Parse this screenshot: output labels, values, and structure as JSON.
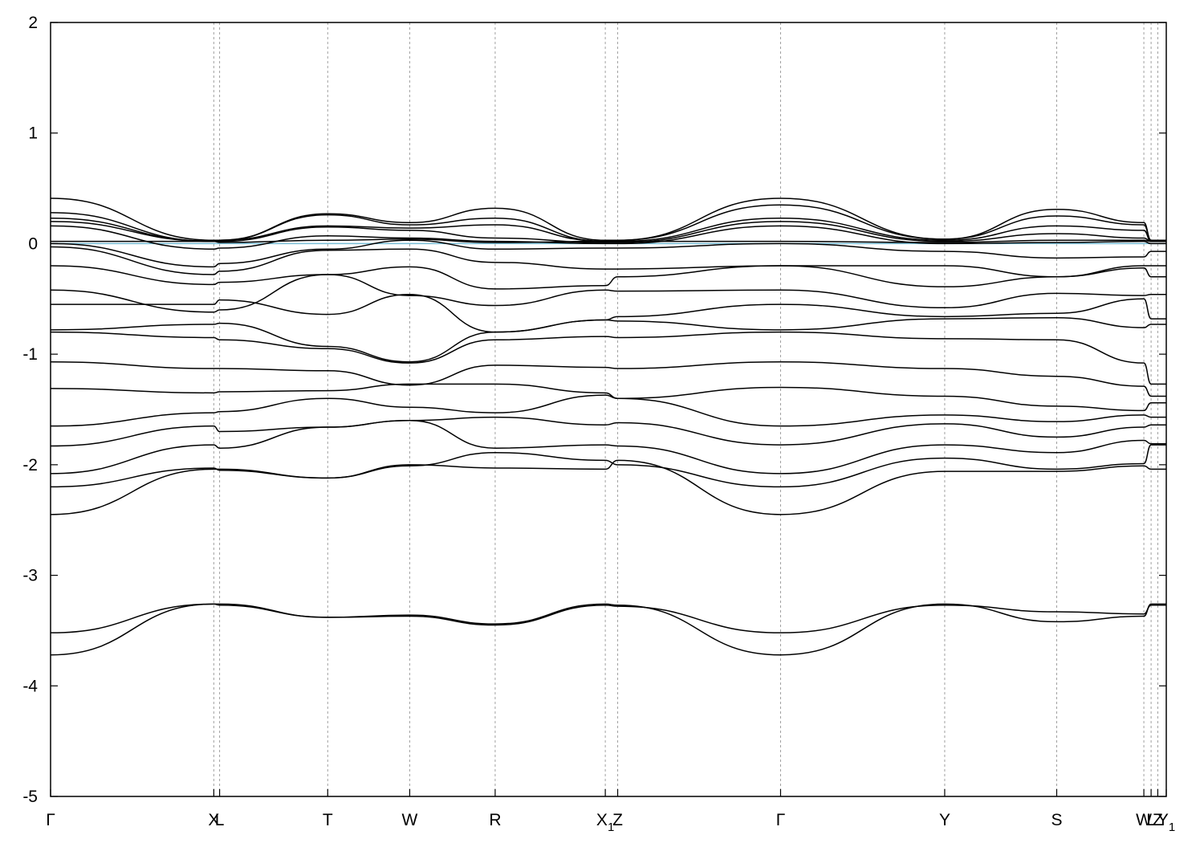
{
  "chart_data": {
    "type": "line",
    "title": "",
    "xlabel": "",
    "ylabel": "",
    "xlim": [
      0,
      1
    ],
    "ylim": [
      -5,
      2
    ],
    "yticks": [
      -5,
      -4,
      -3,
      -2,
      -1,
      0,
      1,
      2
    ],
    "grid": "vertical dashed lines at high-symmetry points",
    "fermi_level": {
      "value": 0.0,
      "color": "#79bed6"
    },
    "line_color": "#000000",
    "high_symmetry_points": [
      {
        "x": 0.0,
        "label": "Γ",
        "sub": ""
      },
      {
        "x": 0.1463,
        "label": "X",
        "sub": ""
      },
      {
        "x": 0.1515,
        "label": "L",
        "sub": ""
      },
      {
        "x": 0.2484,
        "label": "T",
        "sub": ""
      },
      {
        "x": 0.3219,
        "label": "W",
        "sub": ""
      },
      {
        "x": 0.3985,
        "label": "R",
        "sub": ""
      },
      {
        "x": 0.4972,
        "label": "X",
        "sub": "1"
      },
      {
        "x": 0.5083,
        "label": "Z",
        "sub": ""
      },
      {
        "x": 0.6543,
        "label": "Γ",
        "sub": ""
      },
      {
        "x": 0.8014,
        "label": "Y",
        "sub": ""
      },
      {
        "x": 0.9018,
        "label": "S",
        "sub": ""
      },
      {
        "x": 0.9799,
        "label": "W",
        "sub": ""
      },
      {
        "x": 0.9864,
        "label": "L",
        "sub": ""
      },
      {
        "x": 0.9924,
        "label": "Z",
        "sub": ""
      },
      {
        "x": 1.0,
        "label": "Y",
        "sub": "1"
      }
    ],
    "band_nodes_x": [
      0.0,
      0.1463,
      0.1515,
      0.2484,
      0.3219,
      0.3985,
      0.4972,
      0.5083,
      0.6543,
      0.8014,
      0.9018,
      0.9799,
      0.9864,
      0.9924,
      1.0
    ],
    "series": [
      {
        "values": [
          -3.72,
          -3.26,
          -3.26,
          -3.38,
          -3.36,
          -3.44,
          -3.26,
          -3.27,
          -3.72,
          -3.26,
          -3.42,
          -3.37,
          -3.26,
          -3.26,
          -3.26
        ]
      },
      {
        "values": [
          -3.52,
          -3.26,
          -3.27,
          -3.38,
          -3.37,
          -3.45,
          -3.27,
          -3.28,
          -3.52,
          -3.27,
          -3.33,
          -3.35,
          -3.27,
          -3.27,
          -3.27
        ]
      },
      {
        "values": [
          -2.45,
          -2.04,
          -2.04,
          -2.12,
          -2.0,
          -2.03,
          -2.04,
          -1.96,
          -2.45,
          -2.06,
          -2.06,
          -2.01,
          -2.04,
          -2.04,
          -2.04
        ]
      },
      {
        "values": [
          -2.2,
          -2.03,
          -2.05,
          -2.12,
          -2.01,
          -1.89,
          -1.96,
          -2.0,
          -2.2,
          -1.94,
          -2.04,
          -1.99,
          -1.82,
          -1.82,
          -1.82
        ]
      },
      {
        "values": [
          -2.08,
          -1.82,
          -1.85,
          -1.66,
          -1.6,
          -1.85,
          -1.82,
          -1.83,
          -2.08,
          -1.82,
          -1.89,
          -1.78,
          -1.81,
          -1.81,
          -1.81
        ]
      },
      {
        "values": [
          -1.83,
          -1.65,
          -1.7,
          -1.66,
          -1.6,
          -1.57,
          -1.64,
          -1.62,
          -1.82,
          -1.63,
          -1.75,
          -1.66,
          -1.64,
          -1.64,
          -1.64
        ]
      },
      {
        "values": [
          -1.65,
          -1.53,
          -1.52,
          -1.4,
          -1.48,
          -1.53,
          -1.37,
          -1.4,
          -1.65,
          -1.55,
          -1.61,
          -1.55,
          -1.57,
          -1.57,
          -1.57
        ]
      },
      {
        "values": [
          -1.31,
          -1.35,
          -1.34,
          -1.33,
          -1.27,
          -1.27,
          -1.35,
          -1.4,
          -1.3,
          -1.38,
          -1.47,
          -1.51,
          -1.44,
          -1.44,
          -1.44
        ]
      },
      {
        "values": [
          -1.07,
          -1.13,
          -1.13,
          -1.15,
          -1.28,
          -1.1,
          -1.12,
          -1.13,
          -1.07,
          -1.13,
          -1.2,
          -1.29,
          -1.38,
          -1.38,
          -1.38
        ]
      },
      {
        "values": [
          -0.8,
          -0.85,
          -0.87,
          -0.95,
          -1.08,
          -0.87,
          -0.84,
          -0.85,
          -0.8,
          -0.86,
          -0.87,
          -1.08,
          -1.27,
          -1.27,
          -1.27
        ]
      },
      {
        "values": [
          -0.78,
          -0.73,
          -0.72,
          -0.93,
          -1.07,
          -0.8,
          -0.69,
          -0.7,
          -0.78,
          -0.68,
          -0.67,
          -0.76,
          -0.73,
          -0.73,
          -0.73
        ]
      },
      {
        "values": [
          -0.55,
          -0.55,
          -0.51,
          -0.64,
          -0.46,
          -0.8,
          -0.69,
          -0.66,
          -0.55,
          -0.66,
          -0.63,
          -0.5,
          -0.68,
          -0.68,
          -0.68
        ]
      },
      {
        "values": [
          -0.42,
          -0.62,
          -0.6,
          -0.28,
          -0.47,
          -0.56,
          -0.42,
          -0.43,
          -0.42,
          -0.58,
          -0.45,
          -0.47,
          -0.46,
          -0.46,
          -0.46
        ]
      },
      {
        "values": [
          -0.2,
          -0.37,
          -0.35,
          -0.28,
          -0.21,
          -0.41,
          -0.38,
          -0.3,
          -0.2,
          -0.39,
          -0.3,
          -0.22,
          -0.3,
          -0.3,
          -0.3
        ]
      },
      {
        "values": [
          -0.03,
          -0.28,
          -0.25,
          -0.06,
          -0.05,
          -0.17,
          -0.23,
          -0.23,
          -0.2,
          -0.2,
          -0.3,
          -0.2,
          -0.2,
          -0.2,
          -0.2
        ]
      },
      {
        "values": [
          0.0,
          -0.21,
          -0.18,
          -0.05,
          0.03,
          -0.05,
          -0.04,
          -0.04,
          0.0,
          -0.07,
          -0.13,
          -0.12,
          -0.07,
          -0.07,
          -0.07
        ]
      },
      {
        "values": [
          0.02,
          0.02,
          0.01,
          0.03,
          0.04,
          0.01,
          0.02,
          0.02,
          0.02,
          0.01,
          0.03,
          0.03,
          0.02,
          0.02,
          0.02
        ]
      },
      {
        "values": [
          0.16,
          -0.05,
          -0.04,
          0.07,
          0.05,
          0.02,
          0.0,
          0.0,
          0.16,
          0.0,
          0.01,
          0.02,
          0.0,
          0.0,
          0.0
        ]
      },
      {
        "values": [
          0.2,
          0.02,
          0.02,
          0.15,
          0.12,
          0.05,
          0.01,
          0.01,
          0.2,
          0.02,
          0.09,
          0.05,
          0.02,
          0.02,
          0.02
        ]
      },
      {
        "values": [
          0.23,
          0.02,
          0.03,
          0.16,
          0.14,
          0.17,
          0.02,
          0.02,
          0.23,
          0.03,
          0.16,
          0.12,
          0.02,
          0.02,
          0.02
        ]
      },
      {
        "values": [
          0.28,
          0.02,
          0.03,
          0.26,
          0.17,
          0.23,
          0.02,
          0.03,
          0.35,
          0.04,
          0.25,
          0.17,
          0.03,
          0.03,
          0.03
        ]
      },
      {
        "values": [
          0.41,
          0.03,
          0.03,
          0.27,
          0.19,
          0.32,
          0.03,
          0.03,
          0.41,
          0.04,
          0.31,
          0.19,
          0.03,
          0.03,
          0.03
        ]
      }
    ]
  }
}
